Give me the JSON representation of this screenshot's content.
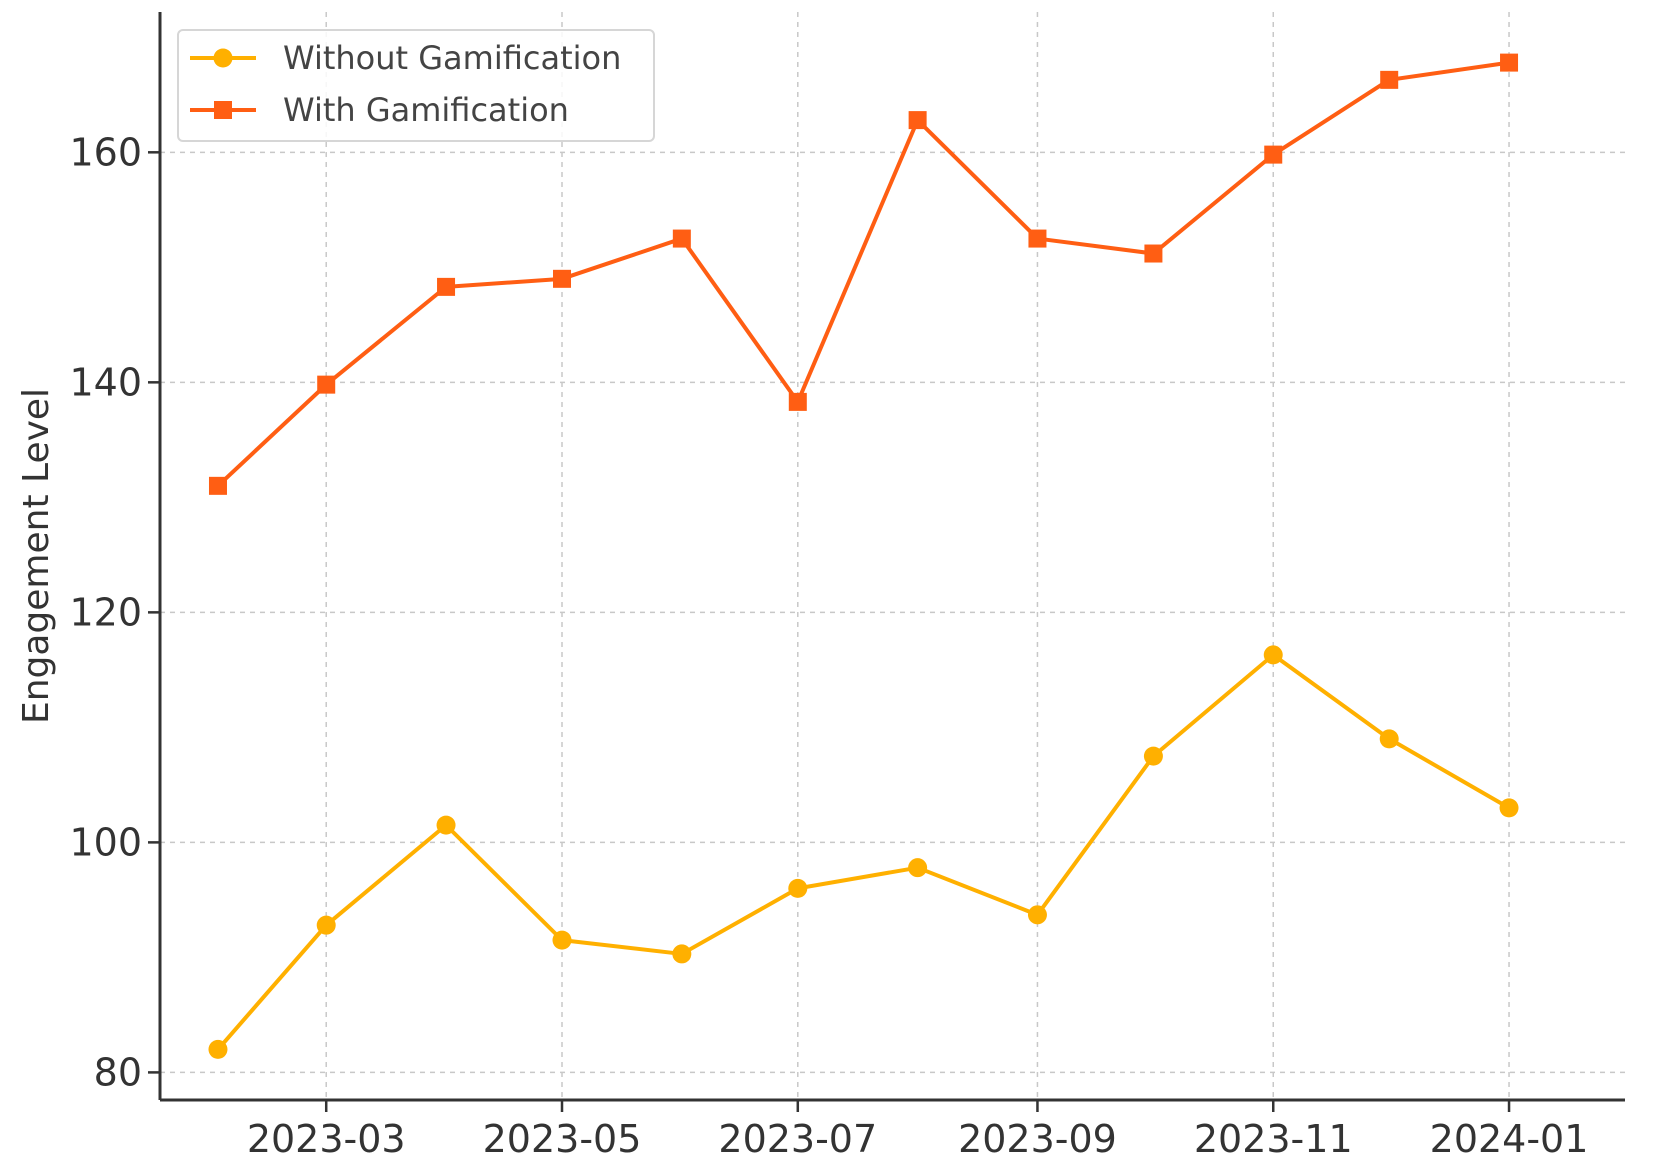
{
  "chart_data": {
    "type": "line",
    "title": "",
    "xlabel": "",
    "ylabel": "Engagement Level",
    "x": [
      "2023-02",
      "2023-03",
      "2023-04",
      "2023-05",
      "2023-06",
      "2023-07",
      "2023-08",
      "2023-09",
      "2023-10",
      "2023-11",
      "2023-12",
      "2024-01"
    ],
    "x_tick_labels": [
      "2023-03",
      "2023-05",
      "2023-07",
      "2023-09",
      "2023-11",
      "2024-01"
    ],
    "x_tick_months": [
      "2023-03",
      "2023-05",
      "2023-07",
      "2023-09",
      "2023-11",
      "2024-01"
    ],
    "y_ticks": [
      80,
      100,
      120,
      140,
      160
    ],
    "y_tick_labels": [
      "80",
      "100",
      "120",
      "140",
      "160"
    ],
    "ylim": [
      77.6,
      172.2
    ],
    "xlim": [
      "2023-01-17",
      "2024-01-31"
    ],
    "grid": true,
    "legend_position": "top-left",
    "series": [
      {
        "name": "Without Gamification",
        "color": "#FFB000",
        "marker": "circle",
        "values": [
          82.0,
          92.8,
          101.5,
          91.5,
          90.3,
          96.0,
          97.8,
          93.7,
          107.5,
          116.3,
          109.0,
          103.0
        ]
      },
      {
        "name": "With Gamification",
        "color": "#FF5E13",
        "marker": "square",
        "values": [
          131.0,
          139.8,
          148.3,
          149.0,
          152.5,
          138.3,
          162.8,
          152.5,
          151.2,
          159.8,
          166.3,
          167.8
        ]
      }
    ]
  }
}
